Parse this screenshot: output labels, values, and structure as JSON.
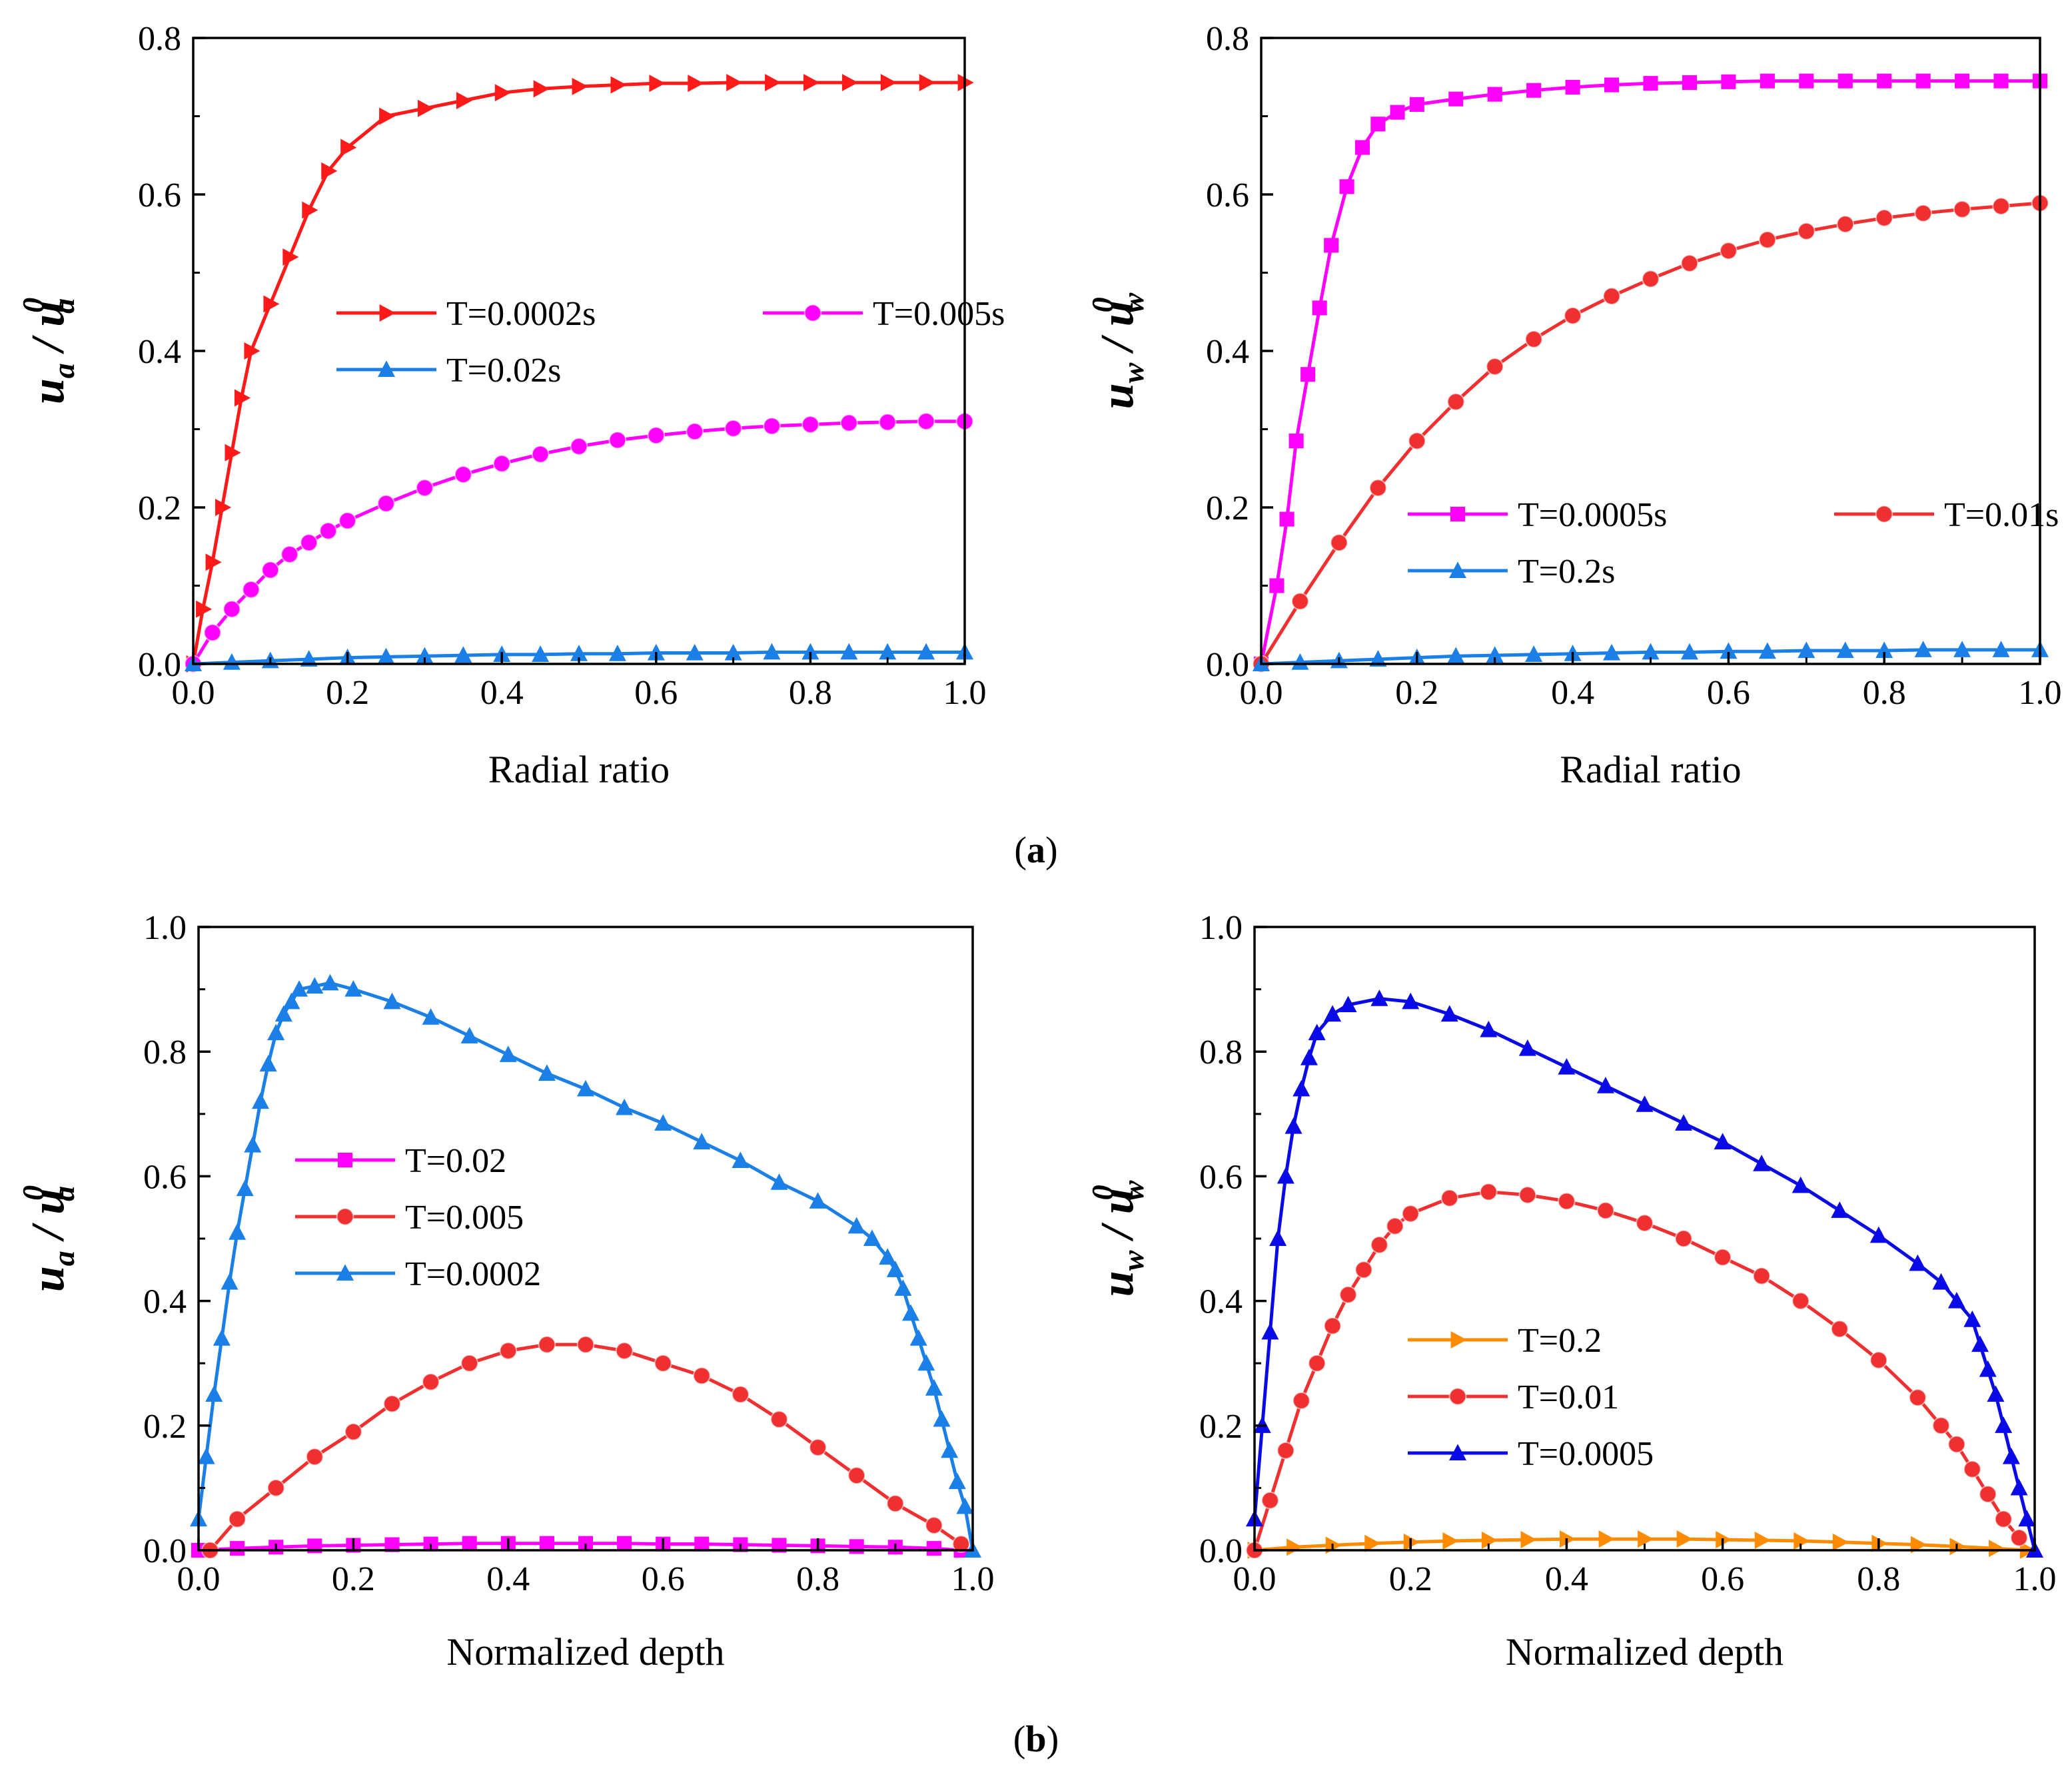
{
  "panel_labels": {
    "a": {
      "open": "(",
      "letter": "a",
      "close": ")"
    },
    "b": {
      "open": "(",
      "letter": "b",
      "close": ")"
    }
  },
  "chart_data": [
    {
      "type": "line",
      "title": "",
      "ylabel": {
        "var": "u",
        "sub": "a",
        "sep": " /",
        "sup": "0"
      },
      "xlabel": "Radial ratio",
      "xlim": [
        0,
        1
      ],
      "ylim": [
        0,
        0.8
      ],
      "xticks": [
        "0.0",
        "0.2",
        "0.4",
        "0.6",
        "0.8",
        "1.0"
      ],
      "yticks": [
        "0.0",
        "0.2",
        "0.4",
        "0.6",
        "0.8"
      ],
      "legend": {
        "columns": 2,
        "placement": "middle-center"
      },
      "series": [
        {
          "name": "T=0.0002s",
          "color": "#ff1a1a",
          "marker": "triangle-right",
          "x": [
            0.0,
            0.0125,
            0.025,
            0.0375,
            0.05,
            0.0625,
            0.075,
            0.1,
            0.125,
            0.15,
            0.175,
            0.2,
            0.25,
            0.3,
            0.35,
            0.4,
            0.45,
            0.5,
            0.55,
            0.6,
            0.65,
            0.7,
            0.75,
            0.8,
            0.85,
            0.9,
            0.95,
            1.0
          ],
          "y": [
            0.0,
            0.07,
            0.13,
            0.2,
            0.27,
            0.34,
            0.4,
            0.46,
            0.52,
            0.58,
            0.63,
            0.66,
            0.7,
            0.71,
            0.72,
            0.73,
            0.735,
            0.738,
            0.74,
            0.742,
            0.742,
            0.743,
            0.743,
            0.743,
            0.743,
            0.743,
            0.743,
            0.743
          ]
        },
        {
          "name": "T=0.005s",
          "color": "#ff00ff",
          "marker": "circle",
          "x": [
            0.0,
            0.025,
            0.05,
            0.075,
            0.1,
            0.125,
            0.15,
            0.175,
            0.2,
            0.25,
            0.3,
            0.35,
            0.4,
            0.45,
            0.5,
            0.55,
            0.6,
            0.65,
            0.7,
            0.75,
            0.8,
            0.85,
            0.9,
            0.95,
            1.0
          ],
          "y": [
            0.0,
            0.04,
            0.07,
            0.095,
            0.12,
            0.14,
            0.155,
            0.17,
            0.183,
            0.205,
            0.225,
            0.242,
            0.256,
            0.268,
            0.278,
            0.286,
            0.292,
            0.297,
            0.301,
            0.304,
            0.306,
            0.308,
            0.309,
            0.31,
            0.31
          ]
        },
        {
          "name": "T=0.02s",
          "color": "#1a7fe6",
          "marker": "triangle-up",
          "x": [
            0.0,
            0.05,
            0.1,
            0.15,
            0.2,
            0.25,
            0.3,
            0.35,
            0.4,
            0.45,
            0.5,
            0.55,
            0.6,
            0.65,
            0.7,
            0.75,
            0.8,
            0.85,
            0.9,
            0.95,
            1.0
          ],
          "y": [
            0.0,
            0.002,
            0.004,
            0.006,
            0.008,
            0.009,
            0.01,
            0.011,
            0.012,
            0.012,
            0.013,
            0.013,
            0.014,
            0.014,
            0.014,
            0.015,
            0.015,
            0.015,
            0.015,
            0.015,
            0.015
          ]
        }
      ]
    },
    {
      "type": "line",
      "title": "",
      "ylabel": {
        "var": "u",
        "sub": "w",
        "sep": " /",
        "sup": "0"
      },
      "xlabel": "Radial ratio",
      "xlim": [
        0,
        1
      ],
      "ylim": [
        0,
        0.8
      ],
      "xticks": [
        "0.0",
        "0.2",
        "0.4",
        "0.6",
        "0.8",
        "1.0"
      ],
      "yticks": [
        "0.0",
        "0.2",
        "0.4",
        "0.6",
        "0.8"
      ],
      "legend": {
        "columns": 2,
        "placement": "lower-center"
      },
      "series": [
        {
          "name": "T=0.0005s",
          "color": "#ff00ff",
          "marker": "square",
          "x": [
            0.0,
            0.02,
            0.033,
            0.045,
            0.06,
            0.075,
            0.09,
            0.11,
            0.13,
            0.15,
            0.175,
            0.2,
            0.25,
            0.3,
            0.35,
            0.4,
            0.45,
            0.5,
            0.55,
            0.6,
            0.65,
            0.7,
            0.75,
            0.8,
            0.85,
            0.9,
            0.95,
            1.0
          ],
          "y": [
            0.0,
            0.1,
            0.185,
            0.285,
            0.37,
            0.455,
            0.535,
            0.61,
            0.66,
            0.69,
            0.705,
            0.715,
            0.722,
            0.728,
            0.733,
            0.737,
            0.74,
            0.742,
            0.743,
            0.744,
            0.745,
            0.745,
            0.745,
            0.745,
            0.745,
            0.745,
            0.745,
            0.745
          ]
        },
        {
          "name": "T=0.01s",
          "color": "#f03030",
          "marker": "circle",
          "x": [
            0.0,
            0.05,
            0.1,
            0.15,
            0.2,
            0.25,
            0.3,
            0.35,
            0.4,
            0.45,
            0.5,
            0.55,
            0.6,
            0.65,
            0.7,
            0.75,
            0.8,
            0.85,
            0.9,
            0.95,
            1.0
          ],
          "y": [
            0.0,
            0.08,
            0.155,
            0.225,
            0.285,
            0.335,
            0.38,
            0.415,
            0.445,
            0.47,
            0.492,
            0.512,
            0.528,
            0.542,
            0.553,
            0.562,
            0.57,
            0.576,
            0.581,
            0.585,
            0.589
          ]
        },
        {
          "name": "T=0.2s",
          "color": "#1a7fe6",
          "marker": "triangle-up",
          "x": [
            0.0,
            0.05,
            0.1,
            0.15,
            0.2,
            0.25,
            0.3,
            0.35,
            0.4,
            0.45,
            0.5,
            0.55,
            0.6,
            0.65,
            0.7,
            0.75,
            0.8,
            0.85,
            0.9,
            0.95,
            1.0
          ],
          "y": [
            0.0,
            0.002,
            0.004,
            0.006,
            0.008,
            0.01,
            0.011,
            0.012,
            0.013,
            0.014,
            0.015,
            0.015,
            0.016,
            0.016,
            0.017,
            0.017,
            0.017,
            0.018,
            0.018,
            0.018,
            0.018
          ]
        }
      ]
    },
    {
      "type": "line",
      "title": "",
      "ylabel": {
        "var": "u",
        "sub": "a",
        "sep": " /",
        "sup": "0"
      },
      "xlabel": "Normalized depth",
      "xlim": [
        0,
        1
      ],
      "ylim": [
        0,
        1.0
      ],
      "xticks": [
        "0.0",
        "0.2",
        "0.4",
        "0.6",
        "0.8",
        "1.0"
      ],
      "yticks": [
        "0.0",
        "0.2",
        "0.4",
        "0.6",
        "0.8",
        "1.0"
      ],
      "legend": {
        "columns": 1,
        "placement": "middle-left"
      },
      "series": [
        {
          "name": "T=0.02",
          "color": "#ff00ff",
          "marker": "square",
          "x": [
            0.0,
            0.05,
            0.1,
            0.15,
            0.2,
            0.25,
            0.3,
            0.35,
            0.4,
            0.45,
            0.5,
            0.55,
            0.6,
            0.65,
            0.7,
            0.75,
            0.8,
            0.85,
            0.9,
            0.95,
            0.985
          ],
          "y": [
            0.0,
            0.003,
            0.005,
            0.007,
            0.008,
            0.009,
            0.01,
            0.011,
            0.011,
            0.011,
            0.011,
            0.011,
            0.01,
            0.01,
            0.009,
            0.008,
            0.007,
            0.006,
            0.005,
            0.003,
            0.0
          ]
        },
        {
          "name": "T=0.005",
          "color": "#f03030",
          "marker": "circle",
          "x": [
            0.015,
            0.05,
            0.1,
            0.15,
            0.2,
            0.25,
            0.3,
            0.35,
            0.4,
            0.45,
            0.5,
            0.55,
            0.6,
            0.65,
            0.7,
            0.75,
            0.8,
            0.85,
            0.9,
            0.95,
            0.985
          ],
          "y": [
            0.0,
            0.05,
            0.1,
            0.15,
            0.19,
            0.235,
            0.27,
            0.3,
            0.32,
            0.33,
            0.33,
            0.32,
            0.3,
            0.28,
            0.25,
            0.21,
            0.165,
            0.12,
            0.075,
            0.04,
            0.01
          ]
        },
        {
          "name": "T=0.0002",
          "color": "#1a7fe6",
          "marker": "triangle-up",
          "x": [
            0.0,
            0.01,
            0.02,
            0.03,
            0.04,
            0.05,
            0.06,
            0.07,
            0.08,
            0.09,
            0.1,
            0.11,
            0.12,
            0.13,
            0.15,
            0.17,
            0.2,
            0.25,
            0.3,
            0.35,
            0.4,
            0.45,
            0.5,
            0.55,
            0.6,
            0.65,
            0.7,
            0.75,
            0.8,
            0.85,
            0.87,
            0.89,
            0.9,
            0.91,
            0.92,
            0.93,
            0.94,
            0.95,
            0.96,
            0.97,
            0.98,
            0.99,
            1.0
          ],
          "y": [
            0.05,
            0.15,
            0.25,
            0.34,
            0.43,
            0.51,
            0.58,
            0.65,
            0.72,
            0.78,
            0.83,
            0.86,
            0.88,
            0.9,
            0.905,
            0.91,
            0.9,
            0.88,
            0.855,
            0.825,
            0.795,
            0.765,
            0.74,
            0.71,
            0.685,
            0.655,
            0.625,
            0.59,
            0.56,
            0.52,
            0.5,
            0.47,
            0.45,
            0.42,
            0.38,
            0.34,
            0.3,
            0.26,
            0.21,
            0.16,
            0.11,
            0.07,
            0.0
          ]
        }
      ]
    },
    {
      "type": "line",
      "title": "",
      "ylabel": {
        "var": "u",
        "sub": "w",
        "sep": " /",
        "sup": "0"
      },
      "xlabel": "Normalized depth",
      "xlim": [
        0,
        1
      ],
      "ylim": [
        0,
        1.0
      ],
      "xticks": [
        "0.0",
        "0.2",
        "0.4",
        "0.6",
        "0.8",
        "1.0"
      ],
      "yticks": [
        "0.0",
        "0.2",
        "0.4",
        "0.6",
        "0.8",
        "1.0"
      ],
      "legend": {
        "columns": 1,
        "placement": "lower-center"
      },
      "series": [
        {
          "name": "T=0.2",
          "color": "#ff8c00",
          "marker": "triangle-right",
          "x": [
            0.0,
            0.05,
            0.1,
            0.15,
            0.2,
            0.25,
            0.3,
            0.35,
            0.4,
            0.45,
            0.5,
            0.55,
            0.6,
            0.65,
            0.7,
            0.75,
            0.8,
            0.85,
            0.9,
            0.95,
            0.99
          ],
          "y": [
            0.0,
            0.005,
            0.008,
            0.011,
            0.013,
            0.015,
            0.016,
            0.017,
            0.018,
            0.018,
            0.018,
            0.018,
            0.017,
            0.016,
            0.015,
            0.013,
            0.011,
            0.009,
            0.006,
            0.003,
            0.0
          ]
        },
        {
          "name": "T=0.01",
          "color": "#f03030",
          "marker": "circle",
          "x": [
            0.0,
            0.02,
            0.04,
            0.06,
            0.08,
            0.1,
            0.12,
            0.14,
            0.16,
            0.18,
            0.2,
            0.25,
            0.3,
            0.35,
            0.4,
            0.45,
            0.5,
            0.55,
            0.6,
            0.65,
            0.7,
            0.75,
            0.8,
            0.85,
            0.88,
            0.9,
            0.92,
            0.94,
            0.96,
            0.98
          ],
          "y": [
            0.0,
            0.08,
            0.16,
            0.24,
            0.3,
            0.36,
            0.41,
            0.45,
            0.49,
            0.52,
            0.54,
            0.565,
            0.575,
            0.57,
            0.56,
            0.545,
            0.525,
            0.5,
            0.47,
            0.44,
            0.4,
            0.355,
            0.305,
            0.245,
            0.2,
            0.17,
            0.13,
            0.09,
            0.05,
            0.02
          ]
        },
        {
          "name": "T=0.0005",
          "color": "#0a0ae6",
          "marker": "triangle-up",
          "x": [
            0.0,
            0.01,
            0.02,
            0.03,
            0.04,
            0.05,
            0.06,
            0.07,
            0.08,
            0.1,
            0.12,
            0.16,
            0.2,
            0.25,
            0.3,
            0.35,
            0.4,
            0.45,
            0.5,
            0.55,
            0.6,
            0.65,
            0.7,
            0.75,
            0.8,
            0.85,
            0.88,
            0.9,
            0.92,
            0.93,
            0.94,
            0.95,
            0.96,
            0.97,
            0.98,
            0.99,
            1.0
          ],
          "y": [
            0.05,
            0.2,
            0.35,
            0.5,
            0.6,
            0.68,
            0.74,
            0.79,
            0.83,
            0.86,
            0.875,
            0.885,
            0.88,
            0.86,
            0.835,
            0.805,
            0.775,
            0.745,
            0.715,
            0.685,
            0.655,
            0.62,
            0.585,
            0.545,
            0.505,
            0.46,
            0.43,
            0.4,
            0.37,
            0.33,
            0.29,
            0.25,
            0.2,
            0.15,
            0.1,
            0.05,
            0.0
          ]
        }
      ]
    }
  ]
}
